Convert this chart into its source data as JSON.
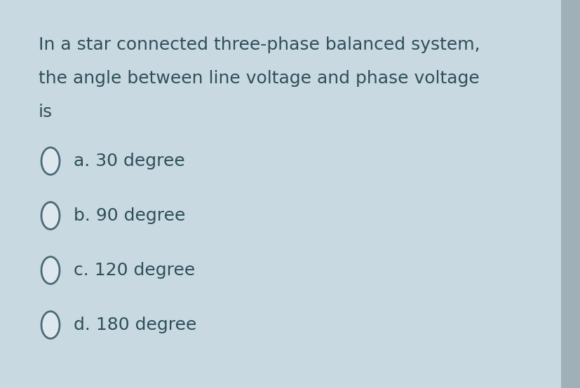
{
  "background_color": "#c9d9e1",
  "question_lines": [
    "In a star connected three-phase balanced system,",
    "the angle between line voltage and phase voltage",
    "is"
  ],
  "options": [
    "a. 30 degree",
    "b. 90 degree",
    "c. 120 degree",
    "d. 180 degree"
  ],
  "text_color": "#2e4f5a",
  "font_size": 18,
  "circle_edge_color": "#4a6a76",
  "circle_face_color": "#dce8ed",
  "right_bar_color": "#a0b0b8"
}
